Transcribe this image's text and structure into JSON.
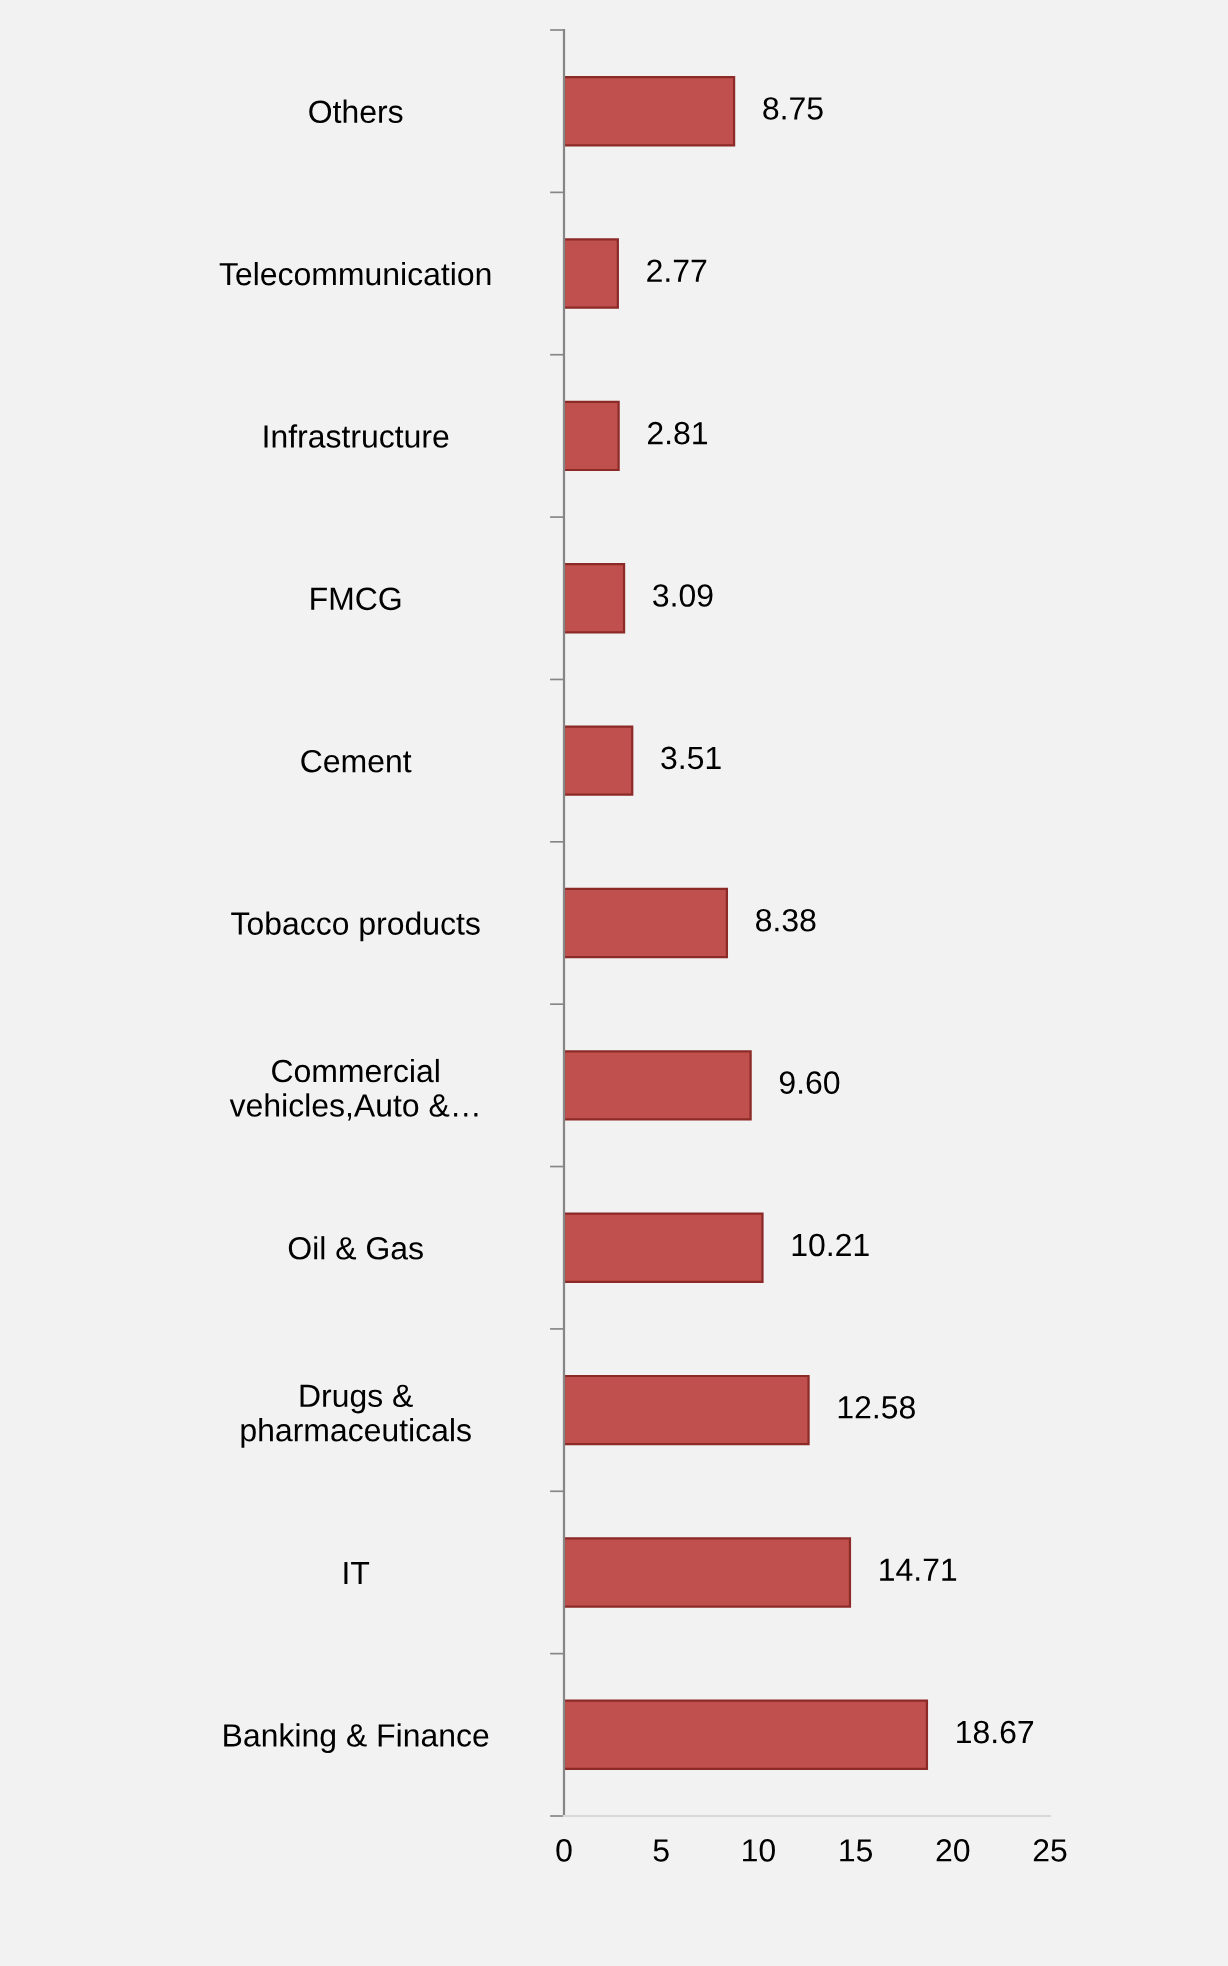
{
  "chart_data": {
    "type": "bar",
    "orientation": "horizontal",
    "categories": [
      "Others",
      "Telecommunication",
      "Infrastructure",
      "FMCG",
      "Cement",
      "Tobacco products",
      "Commercial\nvehicles,Auto &…",
      "Oil & Gas",
      "Drugs &\npharmaceuticals",
      "IT",
      "Banking & Finance"
    ],
    "values": [
      8.75,
      2.77,
      2.81,
      3.09,
      3.51,
      8.38,
      9.6,
      10.21,
      12.58,
      14.71,
      18.67
    ],
    "value_labels": [
      "8.75",
      "2.77",
      "2.81",
      "3.09",
      "3.51",
      "8.38",
      "9.60",
      "10.21",
      "12.58",
      "14.71",
      "18.67"
    ],
    "color": "#c0504d",
    "xlim": [
      0,
      25
    ],
    "xticks": [
      0,
      5,
      10,
      15,
      20,
      25
    ],
    "grid": false,
    "legend": false
  }
}
